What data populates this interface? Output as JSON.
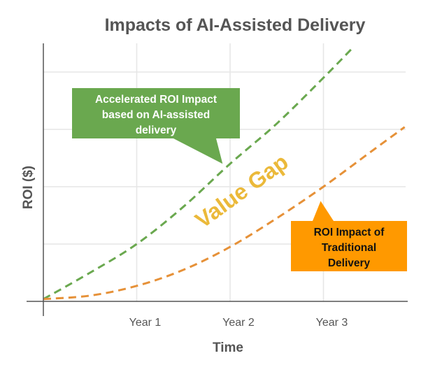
{
  "chart_data": {
    "type": "line",
    "title": "Impacts of AI-Assisted Delivery",
    "xlabel": "Time",
    "ylabel": "ROI ($)",
    "xlim": [
      0,
      3.9
    ],
    "ylim": [
      0,
      4.5
    ],
    "x_ticks": [
      {
        "value": 1,
        "label": "Year 1"
      },
      {
        "value": 2,
        "label": "Year 2"
      },
      {
        "value": 3,
        "label": "Year 3"
      }
    ],
    "y_gridlines": [
      1,
      2,
      3,
      4
    ],
    "grid": true,
    "series": [
      {
        "name": "AI-assisted delivery",
        "color": "#6AA84F",
        "style": "dashed",
        "x": [
          0,
          0.5,
          1,
          1.5,
          2,
          2.5,
          3,
          3.33
        ],
        "y": [
          0.04,
          0.5,
          1.0,
          1.65,
          2.4,
          3.1,
          3.9,
          4.45
        ]
      },
      {
        "name": "Traditional delivery",
        "color": "#E69138",
        "style": "dashed",
        "x": [
          0,
          0.5,
          1,
          1.5,
          2,
          2.5,
          3,
          3.5,
          3.87
        ],
        "y": [
          0.04,
          0.1,
          0.27,
          0.55,
          0.95,
          1.45,
          2.0,
          2.6,
          3.04
        ]
      }
    ],
    "annotations": [
      {
        "id": "green",
        "lines": [
          "Accelerated ROI Impact",
          "based on AI-assisted",
          "delivery"
        ],
        "color": "#6AA84F",
        "text_color": "#FFFFFF",
        "points_to": [
          1.92,
          2.4
        ]
      },
      {
        "id": "orange",
        "lines": [
          "ROI Impact of",
          "Traditional",
          "Delivery"
        ],
        "color": "#FF9900",
        "text_color": "#111111",
        "points_to": [
          2.97,
          1.75
        ]
      },
      {
        "id": "gap",
        "text": "Value Gap",
        "color": "#EBB93A"
      }
    ]
  }
}
